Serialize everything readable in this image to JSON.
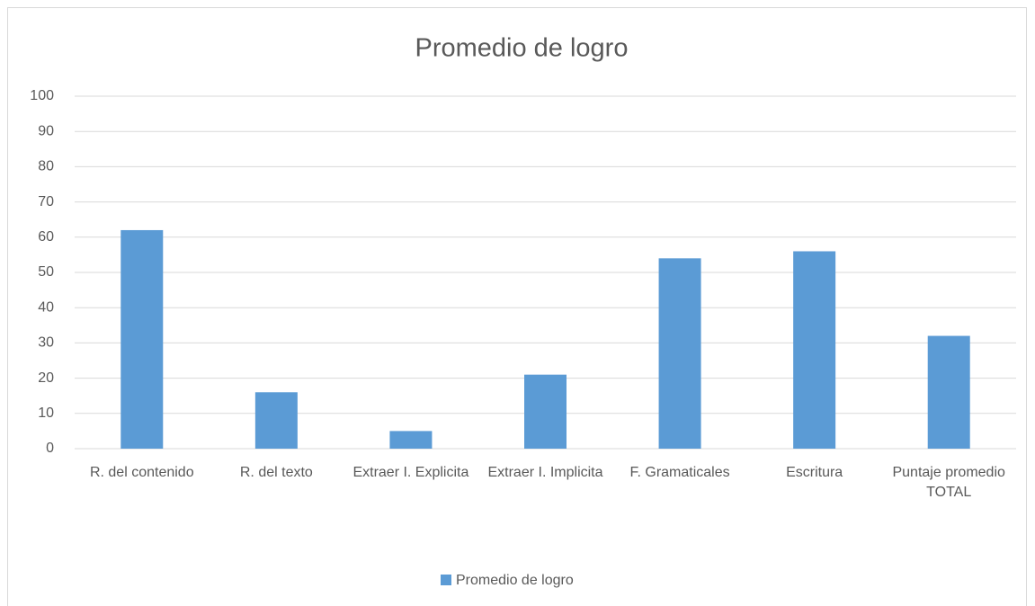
{
  "chart_data": {
    "type": "bar",
    "title": "Promedio de logro",
    "categories": [
      "R. del contenido",
      "R. del texto",
      "Extraer I. Explicita",
      "Extraer I. Implicita",
      "F. Gramaticales",
      "Escritura",
      "Puntaje promedio TOTAL"
    ],
    "series": [
      {
        "name": "Promedio de logro",
        "color": "#5b9bd5",
        "values": [
          62,
          16,
          5,
          21,
          54,
          56,
          32
        ]
      }
    ],
    "ylim": [
      0,
      100
    ],
    "yticks": [
      0,
      10,
      20,
      30,
      40,
      50,
      60,
      70,
      80,
      90,
      100
    ],
    "grid": true,
    "legend": "bottom"
  }
}
